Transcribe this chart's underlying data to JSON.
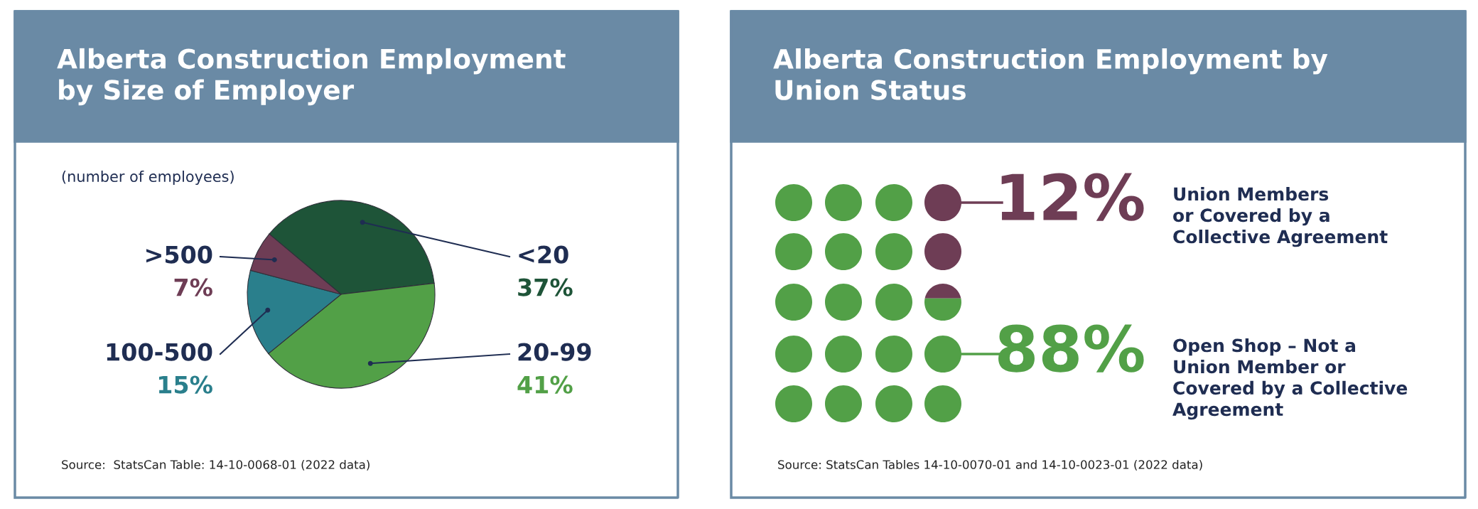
{
  "chart_data": [
    {
      "type": "pie",
      "title": "Alberta Construction Employment\nby Size of Employer",
      "subtitle": "(number of employees)",
      "categories": [
        "<20",
        "20-99",
        "100-500",
        ">500"
      ],
      "values": [
        37,
        41,
        15,
        7
      ],
      "colors": [
        "#1e5438",
        "#52a047",
        "#2a7f8c",
        "#6e3d55"
      ],
      "value_labels": [
        "37%",
        "41%",
        "15%",
        "7%"
      ],
      "annotations": [
        "Source:  StatsCan Table: 14-10-0068-01 (2022 data)"
      ]
    },
    {
      "type": "other",
      "title": "Alberta Construction Employment by\nUnion Status",
      "categories": [
        "Union Members\nor Covered by a\nCollective Agreement",
        "Open Shop – Not a\nUnion Member or\nCovered by a Collective\nAgreement"
      ],
      "values": [
        12,
        88
      ],
      "colors": [
        "#6e3d55",
        "#52a047"
      ],
      "value_labels": [
        "12%",
        "88%"
      ],
      "annotations": [
        "Source: StatsCan Tables 14-10-0070-01 and 14-10-0023-01 (2022 data)"
      ]
    }
  ]
}
